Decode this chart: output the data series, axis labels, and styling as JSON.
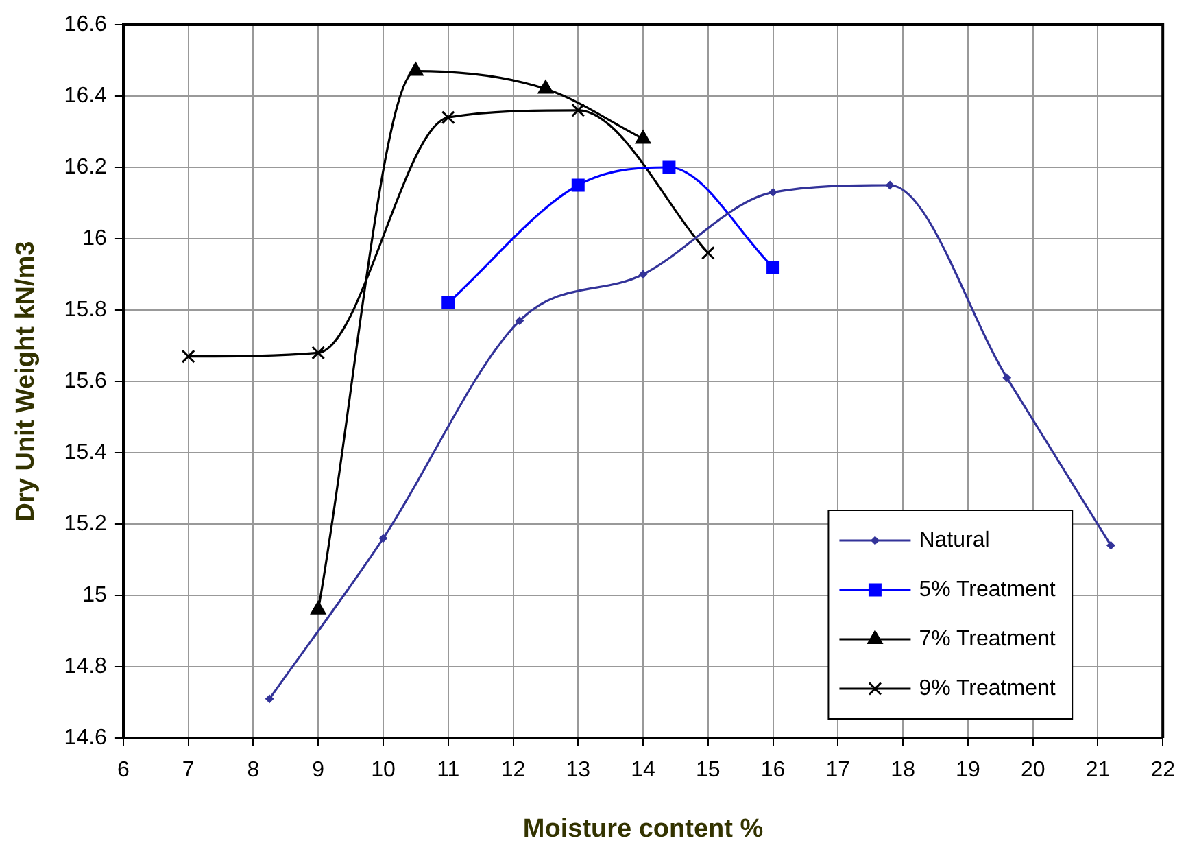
{
  "chart_data": {
    "type": "line",
    "xlabel": "Moisture content %",
    "ylabel": "Dry Unit Weight kN/m3",
    "xlim": [
      6,
      22
    ],
    "xticks": [
      6,
      7,
      8,
      9,
      10,
      11,
      12,
      13,
      14,
      15,
      16,
      17,
      18,
      19,
      20,
      21,
      22
    ],
    "ylim": [
      14.6,
      16.6
    ],
    "yticks": [
      14.6,
      14.8,
      15,
      15.2,
      15.4,
      15.6,
      15.8,
      16,
      16.2,
      16.4,
      16.6
    ],
    "grid": true,
    "legend": "bottom right",
    "series": [
      {
        "name": "Natural",
        "color": "#333399",
        "marker": "diamond",
        "x": [
          8.25,
          10,
          12.1,
          14,
          16,
          17.8,
          19.6,
          21.2
        ],
        "values": [
          14.71,
          15.16,
          15.77,
          15.9,
          16.13,
          16.15,
          15.61,
          15.14
        ]
      },
      {
        "name": "5% Treatment",
        "color": "#0000ff",
        "marker": "square",
        "x": [
          11,
          13,
          14.4,
          16
        ],
        "values": [
          15.82,
          16.15,
          16.2,
          15.92
        ]
      },
      {
        "name": "7% Treatment",
        "color": "#000000",
        "marker": "triangle",
        "x": [
          9,
          10.5,
          12.5,
          14
        ],
        "values": [
          14.96,
          16.47,
          16.42,
          16.28
        ]
      },
      {
        "name": "9% Treatment",
        "color": "#000000",
        "marker": "cross",
        "x": [
          7,
          9,
          11,
          13,
          15
        ],
        "values": [
          15.67,
          15.68,
          16.34,
          16.36,
          15.96
        ]
      }
    ]
  }
}
